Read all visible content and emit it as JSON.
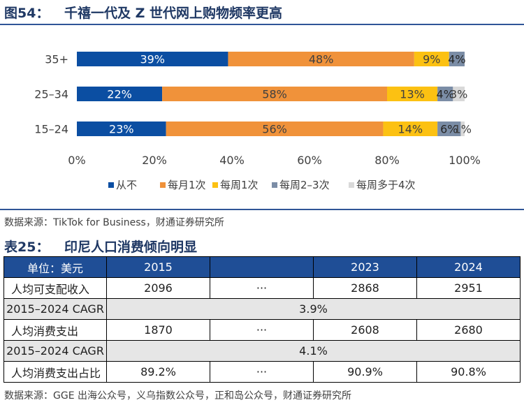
{
  "figure": {
    "label": "图54：",
    "title": "千禧一代及 Z 世代网上购物频率更高"
  },
  "chart_data": {
    "type": "bar",
    "orientation": "horizontal",
    "stacked": true,
    "categories": [
      "35+",
      "25–34",
      "15–24"
    ],
    "series": [
      {
        "name": "从不",
        "values": [
          39,
          22,
          23
        ],
        "labels": [
          "39%",
          "22%",
          "23%"
        ],
        "color": "#0b4ea2",
        "label_color": "#ffffff"
      },
      {
        "name": "每月1次",
        "values": [
          48,
          58,
          56
        ],
        "labels": [
          "48%",
          "58%",
          "56%"
        ],
        "color": "#f0923a",
        "label_color": "#404040"
      },
      {
        "name": "每周1次",
        "values": [
          9,
          13,
          14
        ],
        "labels": [
          "9%",
          "13%",
          "14%"
        ],
        "color": "#fcc112",
        "label_color": "#404040"
      },
      {
        "name": "每周2–3次",
        "values": [
          4,
          4,
          6
        ],
        "labels": [
          "4%",
          "4%",
          "6%"
        ],
        "color": "#7b8da6",
        "label_color": "#262626"
      },
      {
        "name": "每周多于4次",
        "values": [
          0,
          3,
          1
        ],
        "labels": [
          "",
          "3%",
          "1%"
        ],
        "color": "#d9d9d9",
        "label_color": "#404040"
      }
    ],
    "xlim": [
      0,
      100
    ],
    "x_ticks": [
      "0%",
      "20%",
      "40%",
      "60%",
      "80%",
      "100%"
    ],
    "legend_position": "bottom",
    "grid": false
  },
  "chart_source": "数据来源：TikTok for Business，财通证券研究所",
  "table_title": {
    "label": "表25：",
    "title": "印尼人口消费倾向明显"
  },
  "table": {
    "header": [
      "单位：美元",
      "2015",
      "",
      "2023",
      "2024"
    ],
    "rows": [
      {
        "type": "data",
        "cells": [
          "人均可支配收入",
          "2096",
          "···",
          "2868",
          "2951"
        ]
      },
      {
        "type": "cagr",
        "label": "2015–2024 CAGR",
        "value": "3.9%"
      },
      {
        "type": "data",
        "cells": [
          "人均消费支出",
          "1870",
          "···",
          "2608",
          "2680"
        ]
      },
      {
        "type": "cagr",
        "label": "2015–2024 CAGR",
        "value": "4.1%"
      },
      {
        "type": "data",
        "cells": [
          "人均消费支出占比",
          "89.2%",
          "···",
          "90.9%",
          "90.8%"
        ]
      }
    ]
  },
  "table_source": "数据来源：GGE 出海公众号，义乌指数公众号，正和岛公众号，财通证券研究所"
}
